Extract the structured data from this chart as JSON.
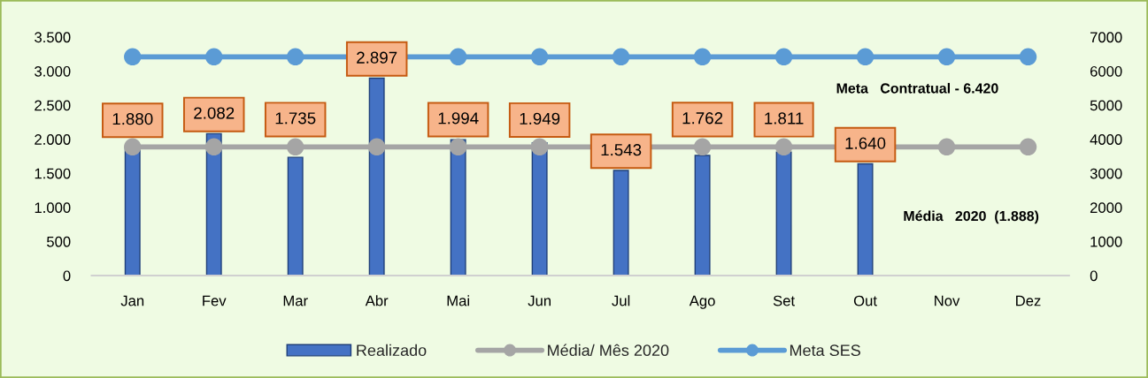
{
  "chart_data": {
    "type": "bar",
    "categories": [
      "Jan",
      "Fev",
      "Mar",
      "Abr",
      "Mai",
      "Jun",
      "Jul",
      "Ago",
      "Set",
      "Out",
      "Nov",
      "Dez"
    ],
    "series": [
      {
        "name": "Realizado",
        "color": "#4472c4",
        "values": [
          1880,
          2082,
          1735,
          2897,
          1994,
          1949,
          1543,
          1762,
          1811,
          1640,
          null,
          null
        ],
        "value_labels": [
          "1.880",
          "2.082",
          "1.735",
          "2.897",
          "1.994",
          "1.949",
          "1.543",
          "1.762",
          "1.811",
          "1.640",
          null,
          null
        ]
      },
      {
        "name": "Média/ Mês 2020",
        "type": "line",
        "color": "#a5a5a5",
        "values": [
          1888,
          1888,
          1888,
          1888,
          1888,
          1888,
          null,
          1888,
          1888,
          null,
          1888,
          1888
        ]
      },
      {
        "name": "Meta SES",
        "type": "line",
        "color": "#5b9bd5",
        "axis": "y2",
        "values": [
          6420,
          6420,
          6420,
          null,
          6420,
          6420,
          6420,
          6420,
          6420,
          6420,
          6420,
          6420
        ]
      }
    ],
    "ylim": [
      0,
      3500
    ],
    "yticks": [
      0,
      500,
      {
        "value": 1000,
        "label": "1.000"
      },
      {
        "value": 1500,
        "label": "1.500"
      },
      {
        "value": 2000,
        "label": "2.000"
      },
      {
        "value": 2500,
        "label": "2.500"
      },
      {
        "value": 3000,
        "label": "3.000"
      },
      {
        "value": 3500,
        "label": "3.500"
      }
    ],
    "y2lim": [
      0,
      7000
    ],
    "y2ticks": [
      0,
      1000,
      2000,
      3000,
      4000,
      5000,
      6000,
      7000
    ],
    "annotations": [
      "Meta   Contratual - 6.420",
      "Média   2020  (1.888)"
    ],
    "legend": "bottom",
    "marker": "circle",
    "grid": false
  }
}
